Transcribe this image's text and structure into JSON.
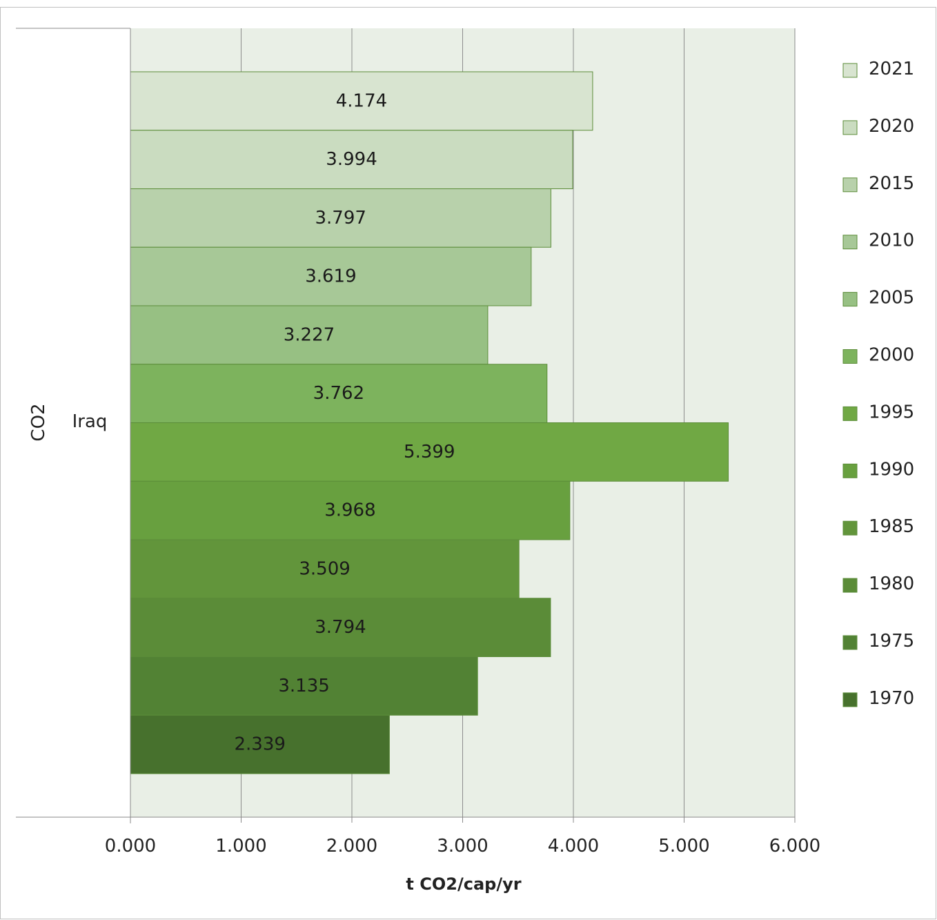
{
  "chart_data": {
    "type": "bar",
    "orientation": "horizontal",
    "group_label": "CO2",
    "category": "Iraq",
    "xlabel": "t CO2/cap/yr",
    "xlim": [
      0,
      6
    ],
    "x_ticks": [
      "0.000",
      "1.000",
      "2.000",
      "3.000",
      "4.000",
      "5.000",
      "6.000"
    ],
    "grid": true,
    "legend_position": "right",
    "series": [
      {
        "name": "2021",
        "value": 4.174,
        "label": "4.174",
        "color": "#d8e4d0"
      },
      {
        "name": "2020",
        "value": 3.994,
        "label": "3.994",
        "color": "#cadcc0"
      },
      {
        "name": "2015",
        "value": 3.797,
        "label": "3.797",
        "color": "#b8d1ab"
      },
      {
        "name": "2010",
        "value": 3.619,
        "label": "3.619",
        "color": "#a7c897"
      },
      {
        "name": "2005",
        "value": 3.227,
        "label": "3.227",
        "color": "#97c083"
      },
      {
        "name": "2000",
        "value": 3.762,
        "label": "3.762",
        "color": "#7db35d"
      },
      {
        "name": "1995",
        "value": 5.399,
        "label": "5.399",
        "color": "#70a844"
      },
      {
        "name": "1990",
        "value": 3.968,
        "label": "3.968",
        "color": "#68a03f"
      },
      {
        "name": "1985",
        "value": 3.509,
        "label": "3.509",
        "color": "#62953b"
      },
      {
        "name": "1980",
        "value": 3.794,
        "label": "3.794",
        "color": "#5b8c38"
      },
      {
        "name": "1975",
        "value": 3.135,
        "label": "3.135",
        "color": "#528234"
      },
      {
        "name": "1970",
        "value": 2.339,
        "label": "2.339",
        "color": "#47712d"
      }
    ]
  }
}
